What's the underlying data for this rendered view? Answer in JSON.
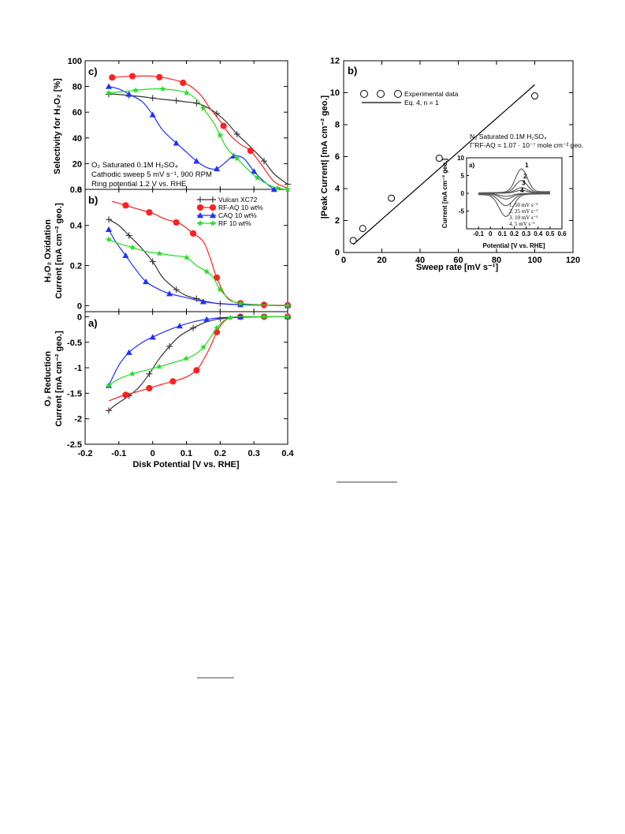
{
  "colors": {
    "vulcan": "#333333",
    "rfaq": "#ff2020",
    "caq": "#2030ff",
    "rf": "#22dd22",
    "grey": "#555555"
  },
  "chart_data": [
    {
      "id": "left",
      "type": "line",
      "xlabel": "Disk Potential [V vs. RHE]",
      "x_ticks": [
        "-0.2",
        "-0.1",
        "0",
        "0.1",
        "0.2",
        "0.3",
        "0.4"
      ],
      "xlim": [
        -0.2,
        0.4
      ],
      "legend": {
        "position": "top-right of panel b",
        "entries": [
          "Vulcan XC72",
          "RF-AQ 10 wt%",
          "CAQ 10 wt%",
          "RF 10 wt%"
        ]
      },
      "annotation_lines": [
        "O₂ Saturated 0.1M H₂SO₄",
        "Cathodic sweep 5 mV s⁻¹, 900 RPM",
        "Ring potential 1.2 V vs. RHE"
      ],
      "panels": [
        {
          "label": "c)",
          "ylabel_lines": [
            "Selectivity for H₂O₂ [%]"
          ],
          "ylim": [
            0,
            100
          ],
          "y_ticks": [
            "0",
            "20",
            "40",
            "60",
            "80",
            "100"
          ],
          "series": [
            {
              "name": "Vulcan XC72",
              "marker": "plus",
              "x": [
                -0.13,
                -0.11,
                -0.07,
                -0.03,
                0.0,
                0.03,
                0.07,
                0.1,
                0.13,
                0.16,
                0.19,
                0.22,
                0.25,
                0.29,
                0.33,
                0.36,
                0.4
              ],
              "y": [
                74,
                74,
                73,
                72,
                71,
                70,
                69,
                68,
                67,
                64,
                59,
                52,
                43,
                33,
                22,
                12,
                4
              ]
            },
            {
              "name": "RF-AQ 10 wt%",
              "marker": "circle",
              "x": [
                -0.12,
                -0.06,
                0.0,
                0.05,
                0.1,
                0.14,
                0.17,
                0.2,
                0.23,
                0.26,
                0.29,
                0.32,
                0.36,
                0.4
              ],
              "y": [
                87,
                88,
                88,
                86,
                82,
                74,
                63,
                53,
                42,
                35,
                30,
                20,
                6,
                1
              ],
              "labeled_x": [
                -0.12,
                -0.06,
                0.02,
                0.09,
                0.21,
                0.29
              ]
            },
            {
              "name": "CAQ 10 wt%",
              "marker": "triangle",
              "x": [
                -0.13,
                -0.1,
                -0.07,
                -0.03,
                0.0,
                0.03,
                0.07,
                0.1,
                0.13,
                0.16,
                0.19,
                0.22,
                0.24,
                0.27,
                0.3,
                0.33,
                0.36
              ],
              "y": [
                80,
                78,
                74,
                68,
                58,
                46,
                36,
                29,
                22,
                17,
                16,
                22,
                26,
                24,
                14,
                6,
                0
              ]
            },
            {
              "name": "RF 10 wt%",
              "marker": "star",
              "x": [
                -0.13,
                -0.09,
                -0.05,
                -0.01,
                0.03,
                0.07,
                0.1,
                0.13,
                0.15,
                0.18,
                0.2,
                0.22,
                0.25,
                0.28,
                0.31,
                0.34,
                0.37,
                0.4
              ],
              "y": [
                75,
                76,
                77,
                78,
                78,
                77,
                75,
                70,
                63,
                52,
                42,
                32,
                24,
                16,
                9,
                4,
                1,
                0
              ]
            }
          ]
        },
        {
          "label": "b)",
          "ylabel_lines": [
            "H₂O₂ Oxidation",
            "Current [mA cm⁻² geo.]"
          ],
          "ylim": [
            -0.03,
            0.58
          ],
          "y_ticks": [
            "0",
            "0.2",
            "0.4"
          ],
          "series": [
            {
              "name": "Vulcan XC72",
              "marker": "plus",
              "x": [
                -0.13,
                -0.1,
                -0.07,
                -0.04,
                0.0,
                0.03,
                0.07,
                0.1,
                0.13,
                0.16,
                0.2,
                0.26,
                0.33,
                0.4
              ],
              "y": [
                0.43,
                0.4,
                0.35,
                0.3,
                0.22,
                0.14,
                0.08,
                0.05,
                0.035,
                0.02,
                0.01,
                0.005,
                0.002,
                0.0
              ]
            },
            {
              "name": "RF-AQ 10 wt%",
              "marker": "circle",
              "x": [
                -0.12,
                -0.08,
                -0.04,
                0.0,
                0.04,
                0.08,
                0.12,
                0.15,
                0.17,
                0.19,
                0.22,
                0.26,
                0.33,
                0.4
              ],
              "y": [
                0.52,
                0.5,
                0.48,
                0.46,
                0.43,
                0.41,
                0.36,
                0.32,
                0.24,
                0.14,
                0.04,
                0.012,
                0.004,
                0.002
              ],
              "labeled_x": [
                -0.08,
                -0.01,
                0.07,
                0.12,
                0.19,
                0.26,
                0.33,
                0.4
              ]
            },
            {
              "name": "CAQ 10 wt%",
              "marker": "triangle",
              "x": [
                -0.13,
                -0.11,
                -0.08,
                -0.05,
                -0.02,
                0.02,
                0.05,
                0.1,
                0.15,
                0.2,
                0.26,
                0.33,
                0.4
              ],
              "y": [
                0.38,
                0.32,
                0.25,
                0.18,
                0.12,
                0.08,
                0.06,
                0.04,
                0.02,
                0.01,
                0.005,
                0.002,
                0.0
              ]
            },
            {
              "name": "RF 10 wt%",
              "marker": "star",
              "x": [
                -0.13,
                -0.1,
                -0.06,
                -0.02,
                0.02,
                0.06,
                0.1,
                0.13,
                0.16,
                0.18,
                0.2,
                0.23,
                0.26,
                0.33,
                0.4
              ],
              "y": [
                0.33,
                0.31,
                0.29,
                0.27,
                0.26,
                0.25,
                0.24,
                0.2,
                0.17,
                0.14,
                0.08,
                0.03,
                0.01,
                0.003,
                0.0
              ]
            }
          ]
        },
        {
          "label": "a)",
          "ylabel_lines": [
            "O₂ Reduction",
            "Current [mA cm⁻² geo.]"
          ],
          "ylim": [
            -2.5,
            0.1
          ],
          "y_ticks": [
            "0",
            "-0.5",
            "-1",
            "-1.5",
            "-2",
            "-2.5"
          ],
          "series": [
            {
              "name": "Vulcan XC72",
              "marker": "plus",
              "x": [
                -0.13,
                -0.11,
                -0.07,
                -0.04,
                -0.01,
                0.02,
                0.05,
                0.08,
                0.12,
                0.16,
                0.2,
                0.26,
                0.33,
                0.4
              ],
              "y": [
                -1.84,
                -1.73,
                -1.55,
                -1.38,
                -1.12,
                -0.82,
                -0.58,
                -0.38,
                -0.22,
                -0.1,
                -0.04,
                -0.01,
                -0.002,
                0.0
              ]
            },
            {
              "name": "RF-AQ 10 wt%",
              "marker": "circle",
              "x": [
                -0.13,
                -0.09,
                -0.05,
                -0.01,
                0.03,
                0.07,
                0.1,
                0.13,
                0.15,
                0.17,
                0.19,
                0.21,
                0.23,
                0.26,
                0.33,
                0.4
              ],
              "y": [
                -1.65,
                -1.55,
                -1.48,
                -1.4,
                -1.32,
                -1.25,
                -1.18,
                -1.05,
                -0.85,
                -0.6,
                -0.3,
                -0.1,
                -0.02,
                0.0,
                0.0,
                0.0
              ],
              "labeled_x": [
                -0.08,
                -0.01,
                0.06,
                0.13,
                0.19,
                0.26,
                0.33,
                0.4
              ]
            },
            {
              "name": "CAQ 10 wt%",
              "marker": "triangle",
              "x": [
                -0.13,
                -0.1,
                -0.07,
                -0.03,
                0.0,
                0.04,
                0.08,
                0.12,
                0.16,
                0.2,
                0.26,
                0.33,
                0.4
              ],
              "y": [
                -1.35,
                -0.95,
                -0.7,
                -0.5,
                -0.4,
                -0.28,
                -0.18,
                -0.1,
                -0.05,
                -0.02,
                0.0,
                0.0,
                0.0
              ]
            },
            {
              "name": "RF 10 wt%",
              "marker": "star",
              "x": [
                -0.13,
                -0.1,
                -0.06,
                -0.02,
                0.02,
                0.06,
                0.1,
                0.13,
                0.15,
                0.17,
                0.19,
                0.21,
                0.23,
                0.26,
                0.33,
                0.4
              ],
              "y": [
                -1.35,
                -1.22,
                -1.12,
                -1.05,
                -0.98,
                -0.9,
                -0.82,
                -0.72,
                -0.6,
                -0.42,
                -0.22,
                -0.08,
                -0.02,
                0.0,
                0.0,
                0.0
              ]
            }
          ]
        }
      ]
    },
    {
      "id": "right",
      "type": "scatter",
      "label": "b)",
      "xlabel": "Sweep rate [mV s⁻¹]",
      "ylabel": "|Peak Current| [mA cm⁻² geo.]",
      "xlim": [
        0,
        120
      ],
      "ylim": [
        0,
        12
      ],
      "x_ticks": [
        "0",
        "20",
        "40",
        "60",
        "80",
        "100",
        "120"
      ],
      "y_ticks": [
        "0",
        "2",
        "4",
        "6",
        "8",
        "10",
        "12"
      ],
      "points": {
        "x": [
          5,
          10,
          25,
          50,
          100
        ],
        "y": [
          0.75,
          1.5,
          3.4,
          5.9,
          9.8
        ]
      },
      "fit_line": {
        "x": [
          5,
          100
        ],
        "y": [
          0.5,
          10.5
        ]
      },
      "legend": {
        "position": "top-left",
        "entries": [
          "Experimental data",
          "Eq. 4, n = 1"
        ]
      },
      "annotation_lines": [
        "N₂ Saturated 0.1M H₂SO₄",
        "Γ′RF-AQ = 1.07 · 10⁻⁷ mole cm⁻² geo."
      ],
      "inset": {
        "label": "a)",
        "type": "line",
        "xlabel": "Potential [V vs. RHE]",
        "ylabel": "Current [mA cm⁻² geo.]",
        "xlim": [
          -0.2,
          0.6
        ],
        "ylim": [
          -10,
          10
        ],
        "x_ticks": [
          "-0.2",
          "0",
          "0.2",
          "0.4",
          "0.6"
        ],
        "x_tick_values": [
          -0.1,
          0.0,
          0.1,
          0.2,
          0.3,
          0.4,
          0.5,
          0.6
        ],
        "x_tick_labels": [
          "-0.1",
          "0",
          "0.1",
          "0.2",
          "0.3",
          "0.4",
          "0.5",
          "0.6"
        ],
        "y_ticks": [
          "10",
          "5",
          "0",
          "-5"
        ],
        "curve_numbers": [
          "1",
          "2",
          "3",
          "4"
        ],
        "legend_lines": [
          "1. 50 mV s⁻¹",
          "2. 25 mV s⁻¹",
          "3. 10 mV s⁻¹",
          "4. 5 mV s⁻¹"
        ],
        "series": [
          {
            "name": "1",
            "peak_anodic": 6.5,
            "peak_cathodic": -6.2,
            "scale": 1.0
          },
          {
            "name": "2",
            "peak_anodic": 3.4,
            "peak_cathodic": -3.3,
            "scale": 0.55
          },
          {
            "name": "3",
            "peak_anodic": 1.5,
            "peak_cathodic": -1.5,
            "scale": 0.28
          },
          {
            "name": "4",
            "peak_anodic": 0.8,
            "peak_cathodic": -0.8,
            "scale": 0.15
          }
        ]
      }
    }
  ],
  "footer": {
    "underline_a": "",
    "underline_b": ""
  }
}
